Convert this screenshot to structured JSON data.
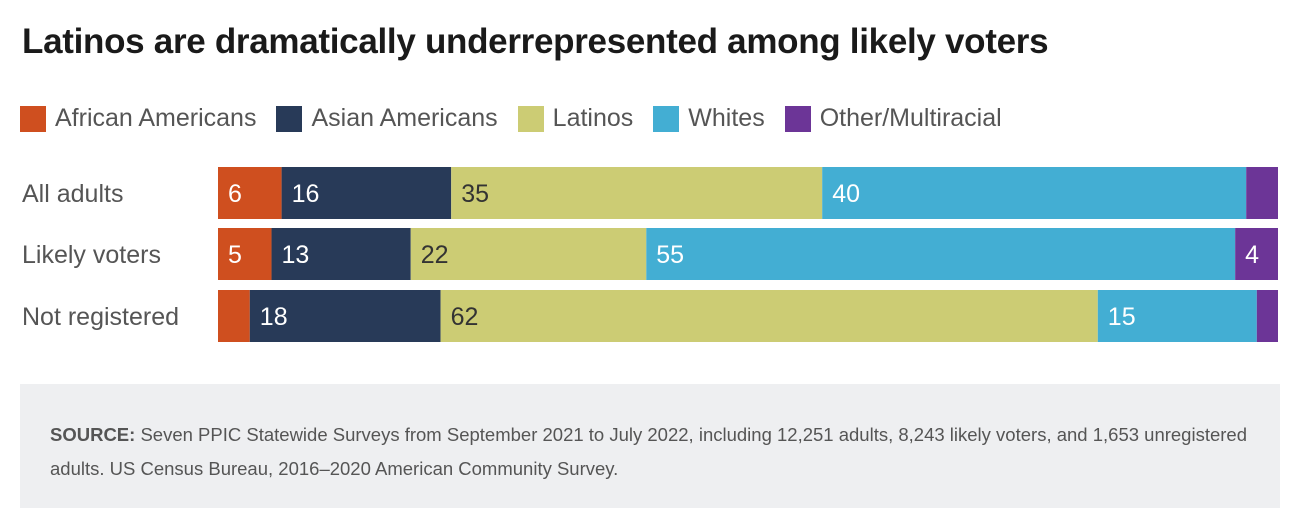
{
  "title": "Latinos are dramatically underrepresented among likely voters",
  "legend": [
    {
      "label": "African Americans",
      "color": "#cf4f1f"
    },
    {
      "label": "Asian Americans",
      "color": "#283a58"
    },
    {
      "label": "Latinos",
      "color": "#cccc74"
    },
    {
      "label": "Whites",
      "color": "#43aed3"
    },
    {
      "label": "Other/Multiracial",
      "color": "#6c3597"
    }
  ],
  "chart_data": {
    "type": "bar",
    "orientation": "horizontal",
    "stacked": true,
    "categories": [
      "All adults",
      "Likely voters",
      "Not registered"
    ],
    "series": [
      {
        "name": "African Americans",
        "color": "#cf4f1f",
        "values": [
          6,
          5,
          3
        ],
        "labels": [
          "6",
          "5",
          ""
        ]
      },
      {
        "name": "Asian Americans",
        "color": "#283a58",
        "values": [
          16,
          13,
          18
        ],
        "labels": [
          "16",
          "13",
          "18"
        ]
      },
      {
        "name": "Latinos",
        "color": "#cccc74",
        "values": [
          35,
          22,
          62
        ],
        "labels": [
          "35",
          "22",
          "62"
        ]
      },
      {
        "name": "Whites",
        "color": "#43aed3",
        "values": [
          40,
          55,
          15
        ],
        "labels": [
          "40",
          "55",
          "15"
        ]
      },
      {
        "name": "Other/Multiracial",
        "color": "#6c3597",
        "values": [
          3,
          4,
          2
        ],
        "labels": [
          "",
          "4",
          ""
        ]
      }
    ],
    "xlim": [
      0,
      100
    ],
    "legend_position": "top-left",
    "grid": false
  },
  "source": {
    "label": "SOURCE:",
    "text": " Seven PPIC Statewide Surveys from September 2021 to July 2022, including 12,251 adults, 8,243 likely voters, and 1,653 unregistered adults. US Census Bureau, 2016–2020 American Community Survey."
  }
}
